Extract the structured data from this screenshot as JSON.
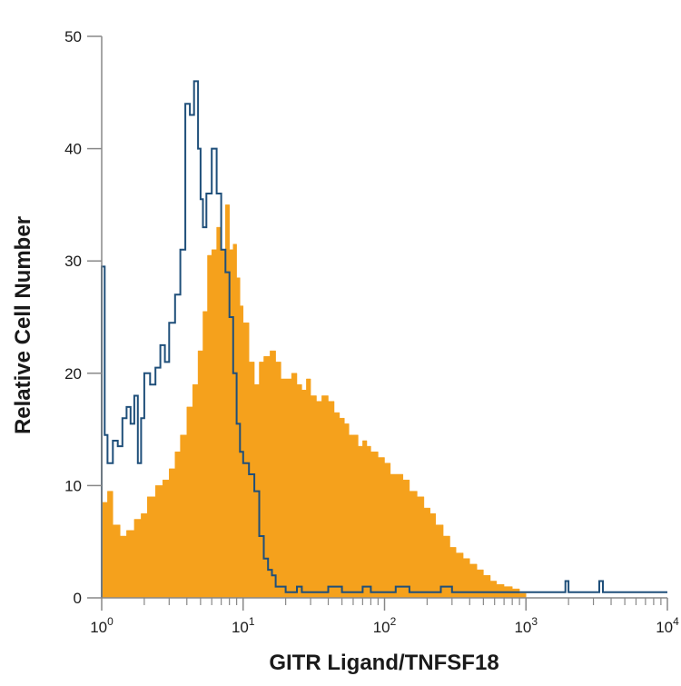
{
  "chart_data": {
    "type": "area",
    "xlabel": "GITR Ligand/TNFSF18",
    "ylabel": "Relative Cell Number",
    "x_scale": "log10",
    "xlim": [
      1,
      10000
    ],
    "ylim": [
      0,
      50
    ],
    "x_ticks": [
      {
        "base": "10",
        "exp": "0",
        "value": 1
      },
      {
        "base": "10",
        "exp": "1",
        "value": 10
      },
      {
        "base": "10",
        "exp": "2",
        "value": 100
      },
      {
        "base": "10",
        "exp": "3",
        "value": 1000
      },
      {
        "base": "10",
        "exp": "4",
        "value": 10000
      }
    ],
    "y_ticks": [
      "0",
      "10",
      "20",
      "30",
      "40",
      "50"
    ],
    "grid": false,
    "series": [
      {
        "style": "filled",
        "color": "#f5a11c",
        "x": [
          1.0,
          1.1,
          1.2,
          1.35,
          1.5,
          1.7,
          1.9,
          2.1,
          2.4,
          2.7,
          3.0,
          3.3,
          3.6,
          4.0,
          4.4,
          4.8,
          5.2,
          5.6,
          6.0,
          6.5,
          7.0,
          7.5,
          8.0,
          8.5,
          9.0,
          9.5,
          10.0,
          11.0,
          12.0,
          13.0,
          14.0,
          15.5,
          17.0,
          18.5,
          20.0,
          22.0,
          24.0,
          26.0,
          28.0,
          30.0,
          33.0,
          36.0,
          40.0,
          44.0,
          48.0,
          52.0,
          56.0,
          60.0,
          65.0,
          70.0,
          75.0,
          80.0,
          90.0,
          100.0,
          110.0,
          120.0,
          135.0,
          150.0,
          170.0,
          190.0,
          210.0,
          230.0,
          260.0,
          290.0,
          320.0,
          360.0,
          400.0,
          450.0,
          500.0,
          560.0,
          620.0,
          700.0,
          800.0,
          900.0,
          1000.0
        ],
        "y": [
          8.5,
          9.5,
          6.5,
          5.5,
          6.0,
          7.0,
          7.5,
          9.0,
          10.0,
          10.5,
          11.5,
          13.0,
          14.5,
          17.0,
          19.0,
          22.0,
          25.5,
          30.5,
          31.0,
          33.0,
          31.0,
          35.0,
          31.0,
          31.5,
          28.5,
          26.0,
          24.5,
          21.0,
          19.0,
          21.0,
          21.5,
          22.0,
          21.0,
          19.5,
          19.5,
          20.0,
          19.0,
          18.5,
          19.5,
          18.0,
          17.5,
          18.0,
          17.5,
          16.5,
          16.0,
          15.5,
          14.5,
          14.5,
          13.5,
          14.0,
          13.5,
          13.0,
          12.5,
          12.0,
          11.0,
          11.0,
          10.5,
          9.5,
          9.0,
          8.0,
          7.5,
          6.5,
          5.5,
          4.5,
          4.0,
          3.5,
          3.0,
          2.5,
          2.0,
          1.5,
          1.2,
          1.0,
          0.8,
          0.4,
          0.0
        ]
      },
      {
        "style": "outline",
        "color": "#1f4f7a",
        "x": [
          1.0,
          1.05,
          1.1,
          1.2,
          1.3,
          1.4,
          1.5,
          1.6,
          1.7,
          1.8,
          1.9,
          2.0,
          2.2,
          2.4,
          2.6,
          2.8,
          3.0,
          3.3,
          3.6,
          3.9,
          4.2,
          4.5,
          4.8,
          5.0,
          5.2,
          5.5,
          6.0,
          6.5,
          7.0,
          7.5,
          8.0,
          8.5,
          9.0,
          9.5,
          10.0,
          11.0,
          12.0,
          13.0,
          14.0,
          15.0,
          16.0,
          17.0,
          18.0,
          20.0,
          22.0,
          24.0,
          26.0,
          28.0,
          32.0,
          36.0,
          40.0,
          50.0,
          60.0,
          70.0,
          80.0,
          100.0,
          120.0,
          150.0,
          200.0,
          250.0,
          300.0,
          400.0,
          500.0,
          600.0,
          800.0,
          1000.0,
          1500.0,
          1900.0,
          2000.0,
          2100.0,
          2500.0,
          3100.0,
          3300.0,
          3500.0,
          5000.0,
          10000.0
        ],
        "y": [
          29.5,
          14.5,
          12.0,
          14.0,
          13.5,
          16.0,
          17.0,
          15.5,
          18.0,
          12.0,
          16.0,
          20.0,
          19.0,
          20.5,
          22.5,
          21.0,
          24.5,
          27.0,
          31.0,
          44.0,
          43.0,
          46.0,
          40.0,
          35.5,
          33.0,
          36.0,
          40.0,
          36.0,
          31.0,
          29.0,
          25.0,
          20.0,
          15.5,
          13.0,
          12.0,
          11.0,
          9.5,
          5.5,
          3.5,
          2.5,
          2.0,
          1.0,
          1.0,
          0.5,
          0.5,
          1.0,
          0.5,
          0.5,
          0.5,
          0.5,
          1.0,
          0.5,
          0.5,
          1.0,
          0.5,
          0.5,
          1.0,
          0.5,
          0.5,
          1.0,
          0.5,
          0.5,
          0.5,
          0.5,
          0.5,
          0.5,
          0.5,
          1.5,
          0.5,
          0.5,
          0.5,
          0.5,
          1.5,
          0.5,
          0.5,
          0.5
        ]
      }
    ]
  }
}
